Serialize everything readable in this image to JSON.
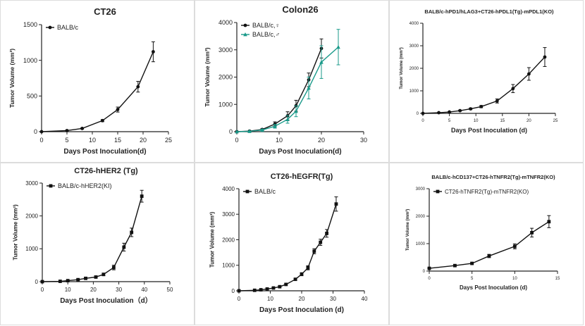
{
  "chart_data": [
    {
      "type": "line",
      "title": "CT26",
      "xlabel": "Days Post Inoculation(d)",
      "ylabel": "Tumor Volume (mm³)",
      "xlim": [
        0,
        25
      ],
      "ylim": [
        0,
        1500
      ],
      "xticks": [
        0,
        5,
        10,
        15,
        20,
        25
      ],
      "yticks": [
        0,
        500,
        1000,
        1500
      ],
      "series": [
        {
          "name": "BALB/c",
          "color": "#111111",
          "marker": "circle",
          "x": [
            0,
            5,
            8,
            12,
            15,
            19,
            22
          ],
          "y": [
            0,
            15,
            45,
            155,
            310,
            630,
            1120
          ],
          "err": [
            0,
            5,
            8,
            15,
            35,
            75,
            140
          ]
        }
      ]
    },
    {
      "type": "line",
      "title": "Colon26",
      "xlabel": "Days Post  Inoculation(d)",
      "ylabel": "Tumor Volume (mm³)",
      "xlim": [
        0,
        30
      ],
      "ylim": [
        0,
        4000
      ],
      "xticks": [
        0,
        10,
        20,
        30
      ],
      "yticks": [
        0,
        1000,
        2000,
        3000,
        4000
      ],
      "series": [
        {
          "name": "BALB/c,♀",
          "color": "#111111",
          "marker": "circle",
          "x": [
            0,
            3,
            6,
            9,
            12,
            14,
            17,
            20
          ],
          "y": [
            0,
            20,
            80,
            280,
            580,
            950,
            1900,
            3050
          ],
          "err": [
            0,
            10,
            30,
            80,
            150,
            200,
            250,
            350
          ]
        },
        {
          "name": "BALB/c,♂",
          "color": "#1a9a8a",
          "marker": "triangle",
          "x": [
            0,
            3,
            6,
            9,
            12,
            14,
            17,
            20,
            24
          ],
          "y": [
            0,
            15,
            60,
            200,
            450,
            750,
            1600,
            2550,
            3100
          ],
          "err": [
            0,
            10,
            30,
            70,
            140,
            200,
            400,
            600,
            650
          ]
        }
      ]
    },
    {
      "type": "line",
      "title": "BALB/c-hPD1/hLAG3+CT26-hPDL1(Tg)-mPDL1(KO)",
      "xlabel": "Days Post Inoculation (d)",
      "ylabel": "Tumor Volume (mm³)",
      "xlim": [
        0,
        25
      ],
      "ylim": [
        0,
        4000
      ],
      "xticks": [
        0,
        5,
        10,
        15,
        20,
        25
      ],
      "yticks": [
        0,
        1000,
        2000,
        3000,
        4000
      ],
      "series": [
        {
          "name": "",
          "color": "#111111",
          "marker": "circle",
          "x": [
            0,
            3,
            5,
            7,
            9,
            11,
            14,
            17,
            20,
            23
          ],
          "y": [
            0,
            30,
            60,
            120,
            200,
            300,
            550,
            1100,
            1750,
            2500
          ],
          "err": [
            0,
            10,
            15,
            25,
            35,
            50,
            90,
            180,
            280,
            420
          ]
        }
      ]
    },
    {
      "type": "line",
      "title": "CT26-hHER2 (Tg)",
      "xlabel": "Days Post Inoculation（d）",
      "ylabel": "Tumor Volume (mm³)",
      "xlim": [
        0,
        50
      ],
      "ylim": [
        0,
        3000
      ],
      "xticks": [
        0,
        10,
        20,
        30,
        40,
        50
      ],
      "yticks": [
        0,
        1000,
        2000,
        3000
      ],
      "series": [
        {
          "name": "BALB/c-hHER2(KI)",
          "color": "#111111",
          "marker": "square",
          "x": [
            0,
            7,
            10,
            14,
            17,
            21,
            24,
            28,
            32,
            35,
            39
          ],
          "y": [
            0,
            10,
            30,
            60,
            100,
            140,
            220,
            430,
            1050,
            1500,
            2600
          ],
          "err": [
            0,
            5,
            10,
            15,
            20,
            30,
            40,
            70,
            120,
            130,
            180
          ]
        }
      ]
    },
    {
      "type": "line",
      "title": "CT26-hEGFR(Tg)",
      "xlabel": "Days Post Inoculation (d)",
      "ylabel": "Tumor Volume (mm³)",
      "xlim": [
        0,
        40
      ],
      "ylim": [
        0,
        4000
      ],
      "xticks": [
        0,
        10,
        20,
        30,
        40
      ],
      "yticks": [
        0,
        1000,
        2000,
        3000,
        4000
      ],
      "series": [
        {
          "name": "BALB/c",
          "color": "#111111",
          "marker": "square",
          "x": [
            0,
            5,
            7,
            9,
            11,
            13,
            15,
            18,
            20,
            22,
            24,
            26,
            28,
            31
          ],
          "y": [
            0,
            20,
            40,
            70,
            110,
            160,
            250,
            450,
            650,
            900,
            1550,
            1900,
            2250,
            3400
          ],
          "err": [
            0,
            5,
            8,
            10,
            15,
            20,
            30,
            40,
            60,
            80,
            100,
            120,
            150,
            280
          ]
        }
      ]
    },
    {
      "type": "line",
      "title": "BALB/c-hCD137+CT26-hTNFR2(Tg)-mTNFR2(KO)",
      "xlabel": "Days Post Inoculation (d)",
      "ylabel": "Tumor Volume (mm³)",
      "xlim": [
        0,
        15
      ],
      "ylim": [
        0,
        3000
      ],
      "xticks": [
        0,
        5,
        10,
        15
      ],
      "yticks": [
        0,
        1000,
        2000,
        3000
      ],
      "series": [
        {
          "name": "CT26-hTNFR2(Tg)-mTNFR2(KO)",
          "color": "#111111",
          "marker": "square",
          "x": [
            0,
            3,
            5,
            7,
            10,
            12,
            14
          ],
          "y": [
            100,
            200,
            280,
            550,
            900,
            1400,
            1800
          ],
          "err": [
            10,
            20,
            30,
            60,
            90,
            160,
            220
          ]
        }
      ]
    }
  ]
}
